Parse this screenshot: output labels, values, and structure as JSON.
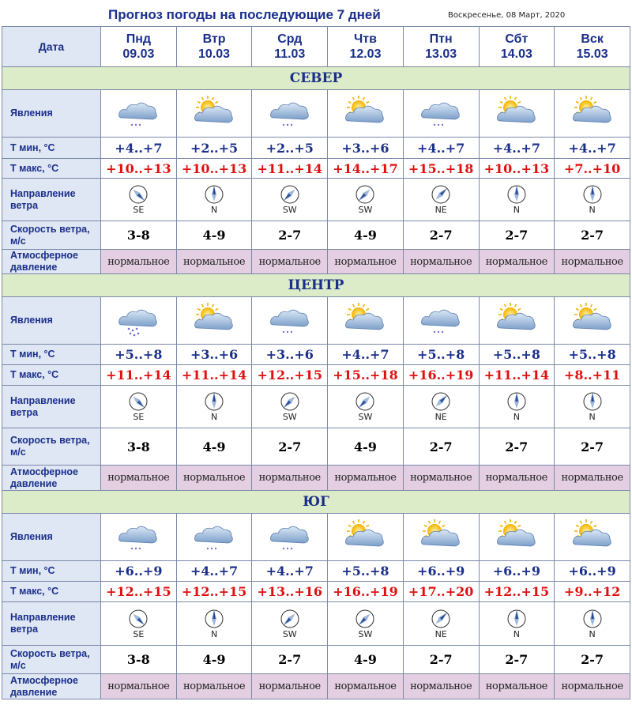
{
  "page": {
    "title": "Прогноз погоды на последующие 7 дней",
    "date": "Воскресенье, 08 Март, 2020"
  },
  "header": {
    "date_label": "Дата"
  },
  "labels": {
    "phenomena": "Явления",
    "tmin": "Т мин, °С",
    "tmax": "Т макс, °С",
    "wind_dir": "Направление ветра",
    "wind_speed": "Скорость ветра, м/с",
    "pressure": "Атмосферное давление"
  },
  "days": [
    {
      "name": "Пнд",
      "date": "09.03"
    },
    {
      "name": "Втр",
      "date": "10.03"
    },
    {
      "name": "Срд",
      "date": "11.03"
    },
    {
      "name": "Чтв",
      "date": "12.03"
    },
    {
      "name": "Птн",
      "date": "13.03"
    },
    {
      "name": "Сбт",
      "date": "14.03"
    },
    {
      "name": "Вск",
      "date": "15.03"
    }
  ],
  "regions": [
    {
      "name": "СЕВЕР",
      "icons": [
        "cloud-snow-icon",
        "sun-cloud-icon",
        "cloud-snow-icon",
        "sun-cloud-icon",
        "cloud-snow-icon",
        "sun-cloud-icon",
        "sun-cloud-icon"
      ],
      "tmin": [
        "+4..+7",
        "+2..+5",
        "+2..+5",
        "+3..+6",
        "+4..+7",
        "+4..+7",
        "+4..+7"
      ],
      "tmax": [
        "+10..+13",
        "+10..+13",
        "+11..+14",
        "+14..+17",
        "+15..+18",
        "+10..+13",
        "+7..+10"
      ],
      "wind_dir": [
        "SE",
        "N",
        "SW",
        "SW",
        "NE",
        "N",
        "N"
      ],
      "wind_speed": [
        "3-8",
        "4-9",
        "2-7",
        "4-9",
        "2-7",
        "2-7",
        "2-7"
      ],
      "pressure": [
        "нормальное",
        "нормальное",
        "нормальное",
        "нормальное",
        "нормальное",
        "нормальное",
        "нормальное"
      ]
    },
    {
      "name": "ЦЕНТР",
      "icons": [
        "cloud-rain-icon",
        "sun-cloud-icon",
        "cloud-snow-icon",
        "sun-cloud-icon",
        "cloud-snow-icon",
        "sun-cloud-icon",
        "sun-cloud-icon"
      ],
      "tmin": [
        "+5..+8",
        "+3..+6",
        "+3..+6",
        "+4..+7",
        "+5..+8",
        "+5..+8",
        "+5..+8"
      ],
      "tmax": [
        "+11..+14",
        "+11..+14",
        "+12..+15",
        "+15..+18",
        "+16..+19",
        "+11..+14",
        "+8..+11"
      ],
      "wind_dir": [
        "SE",
        "N",
        "SW",
        "SW",
        "NE",
        "N",
        "N"
      ],
      "wind_speed": [
        "3-8",
        "4-9",
        "2-7",
        "4-9",
        "2-7",
        "2-7",
        "2-7"
      ],
      "pressure": [
        "нормальное",
        "нормальное",
        "нормальное",
        "нормальное",
        "нормальное",
        "нормальное",
        "нормальное"
      ]
    },
    {
      "name": "ЮГ",
      "icons": [
        "cloud-snow-icon",
        "cloud-snow-icon",
        "cloud-snow-icon",
        "sun-cloud-icon",
        "sun-cloud-icon",
        "sun-cloud-icon",
        "sun-cloud-icon"
      ],
      "tmin": [
        "+6..+9",
        "+4..+7",
        "+4..+7",
        "+5..+8",
        "+6..+9",
        "+6..+9",
        "+6..+9"
      ],
      "tmax": [
        "+12..+15",
        "+12..+15",
        "+13..+16",
        "+16..+19",
        "+17..+20",
        "+12..+15",
        "+9..+12"
      ],
      "wind_dir": [
        "SE",
        "N",
        "SW",
        "SW",
        "NE",
        "N",
        "N"
      ],
      "wind_speed": [
        "3-8",
        "4-9",
        "2-7",
        "4-9",
        "2-7",
        "2-7",
        "2-7"
      ],
      "pressure": [
        "нормальное",
        "нормальное",
        "нормальное",
        "нормальное",
        "нормальное",
        "нормальное",
        "нормальное"
      ]
    }
  ],
  "colors": {
    "title": "#1a2f8a",
    "tmax": "#e01010",
    "region_band": "#dcebc8",
    "label_bg": "#dfe6f4",
    "pressure_bg": "#e3cfe1"
  }
}
